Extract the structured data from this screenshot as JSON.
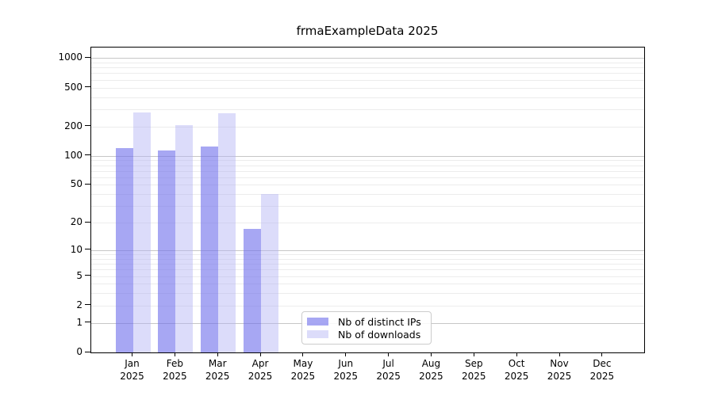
{
  "chart_data": {
    "type": "bar",
    "title": "frmaExampleData 2025",
    "categories": [
      "Jan 2025",
      "Feb 2025",
      "Mar 2025",
      "Apr 2025",
      "May 2025",
      "Jun 2025",
      "Jul 2025",
      "Aug 2025",
      "Sep 2025",
      "Oct 2025",
      "Nov 2025",
      "Dec 2025"
    ],
    "series": [
      {
        "name": "Nb of distinct IPs",
        "solid_color": "#a7a7f3",
        "fill": "rgba(113,113,236,0.62)",
        "values": [
          120,
          113,
          125,
          17,
          0,
          0,
          0,
          0,
          0,
          0,
          0,
          0
        ]
      },
      {
        "name": "Nb of downloads",
        "solid_color": "#dcdcfa",
        "fill": "rgba(177,177,244,0.45)",
        "values": [
          278,
          206,
          274,
          40,
          0,
          0,
          0,
          0,
          0,
          0,
          0,
          0
        ]
      }
    ],
    "xlabel": "",
    "ylabel": "",
    "yscale": "log1p (log-like with 0 at baseline)",
    "yticks": [
      0,
      1,
      2,
      5,
      10,
      20,
      50,
      100,
      200,
      500,
      1000
    ],
    "ylim": [
      0,
      1300
    ],
    "grid": {
      "horizontal": "on",
      "major_gridline_values": [
        1,
        10,
        100,
        1000
      ],
      "minor_gridlines": "2-9 multiples of each decade",
      "major_color": "#c6c6c6",
      "minor_color": "#ececec"
    },
    "legend_position": "inside plot, bottom center-left"
  }
}
